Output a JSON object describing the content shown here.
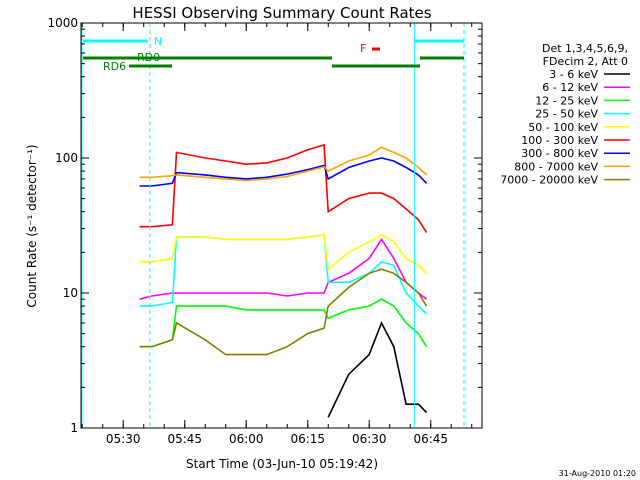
{
  "chart_data": {
    "type": "line",
    "title": "HESSI Observing Summary Count Rates",
    "xlabel": "Start Time (03-Jun-10 05:19:42)",
    "ylabel": "Count Rate (s⁻¹ detector⁻¹)",
    "y_scale": "log",
    "ylim": [
      1,
      1000
    ],
    "xlim": [
      "05:19:42",
      "06:57:30"
    ],
    "x_ticks": [
      "05:30",
      "05:45",
      "06:00",
      "06:15",
      "06:30",
      "06:45"
    ],
    "y_ticks": [
      "1",
      "10",
      "100",
      "1000"
    ],
    "grid": false,
    "legend": {
      "placement": "right",
      "header": [
        "Det 1,3,4,5,6,9,",
        "FDecim 2, Att 0"
      ]
    },
    "x": [
      "05:34:00",
      "05:37:00",
      "05:42:00",
      "05:43:00",
      "05:50:00",
      "05:55:00",
      "06:00:00",
      "06:05:00",
      "06:10:00",
      "06:15:00",
      "06:19:00",
      "06:20:00",
      "06:25:00",
      "06:30:00",
      "06:33:00",
      "06:36:00",
      "06:39:00",
      "06:42:00",
      "06:44:00",
      "06:45:00"
    ],
    "series": [
      {
        "name": "3 - 6 keV",
        "color": "#000000",
        "values": [
          null,
          null,
          null,
          null,
          null,
          null,
          null,
          null,
          null,
          null,
          null,
          1.2,
          2.5,
          3.5,
          6,
          4,
          1.5,
          1.5,
          1.3,
          null
        ]
      },
      {
        "name": "6 - 12 keV",
        "color": "#ff00ff",
        "values": [
          9,
          9.5,
          10,
          10,
          10,
          10,
          10,
          10,
          9.5,
          10,
          10,
          12,
          14,
          18,
          25,
          18,
          12,
          10,
          9,
          null
        ]
      },
      {
        "name": "12 - 25 keV",
        "color": "#00ff00",
        "values": [
          4,
          4,
          4.5,
          8,
          8,
          8,
          7.5,
          7.5,
          7.5,
          7.5,
          7.5,
          6.5,
          7.5,
          8,
          9,
          8,
          6,
          5,
          4,
          null
        ]
      },
      {
        "name": "25 - 50 keV",
        "color": "#00ffff",
        "values": [
          8,
          8,
          8.5,
          26,
          26,
          25,
          25,
          25,
          25,
          26,
          27,
          12,
          12,
          14,
          17,
          16,
          10,
          8,
          7,
          null
        ]
      },
      {
        "name": "50 - 100 keV",
        "color": "#ffff00",
        "values": [
          17,
          17,
          18,
          26,
          26,
          25,
          25,
          25,
          25,
          26,
          27,
          15,
          20,
          24,
          27,
          24,
          18,
          16,
          14,
          null
        ]
      },
      {
        "name": "100 - 300 keV",
        "color": "#ff0000",
        "values": [
          31,
          31,
          32,
          110,
          100,
          95,
          90,
          92,
          100,
          115,
          125,
          40,
          50,
          55,
          55,
          50,
          42,
          35,
          28,
          null
        ]
      },
      {
        "name": "300 - 800 keV",
        "color": "#0000ff",
        "values": [
          62,
          62,
          65,
          78,
          75,
          72,
          70,
          72,
          76,
          82,
          88,
          70,
          85,
          95,
          100,
          95,
          85,
          75,
          65,
          null
        ]
      },
      {
        "name": "800 - 7000 keV",
        "color": "#ffa500",
        "values": [
          72,
          72,
          74,
          75,
          72,
          70,
          68,
          70,
          73,
          80,
          86,
          80,
          95,
          105,
          120,
          110,
          100,
          85,
          75,
          null
        ]
      },
      {
        "name": "7000 - 20000 keV",
        "color": "#808000",
        "values": [
          4,
          4,
          4.5,
          6,
          4.5,
          3.5,
          3.5,
          3.5,
          4,
          5,
          5.5,
          8,
          11,
          14,
          15,
          14,
          12,
          10,
          8,
          null
        ]
      }
    ],
    "annotations": {
      "night_label": "N",
      "flare_label": "F",
      "saa_labels": [
        "RD0",
        "RD6"
      ],
      "colors": {
        "night": "#00ffff",
        "flare": "#ff0000",
        "saa": "#008000"
      }
    }
  },
  "footer_date": "31-Aug-2010 01:20"
}
